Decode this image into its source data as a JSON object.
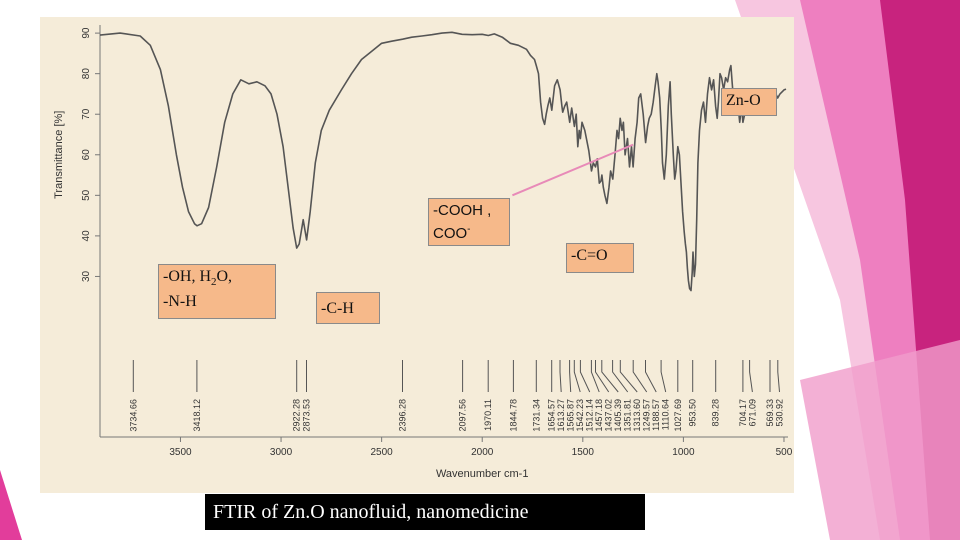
{
  "colors": {
    "background": "#ffffff",
    "panel": "#f5ecd9",
    "curve": "#555555",
    "label_fill": "#f6b98a",
    "pointer": "#e88ab8",
    "caption_bg": "#000000",
    "deco_pink": "#e23d9b",
    "deco_light": "#f3a6cf"
  },
  "chart_data": {
    "type": "line",
    "title": "",
    "xlabel": "Wavenumber cm-1",
    "ylabel": "Transmittance [%]",
    "xlim": [
      3900,
      480
    ],
    "ylim": [
      20,
      92
    ],
    "x_ticks": [
      3500,
      3000,
      2500,
      2000,
      1500,
      1000,
      500
    ],
    "y_ticks": [
      30,
      40,
      50,
      60,
      70,
      80,
      90
    ],
    "grid": false,
    "legend": "none",
    "series": [
      {
        "points": [
          [
            3900,
            89.5
          ],
          [
            3800,
            90
          ],
          [
            3700,
            89.3
          ],
          [
            3650,
            87
          ],
          [
            3600,
            81
          ],
          [
            3560,
            72
          ],
          [
            3520,
            60
          ],
          [
            3490,
            52
          ],
          [
            3460,
            46
          ],
          [
            3430,
            43
          ],
          [
            3418,
            42.5
          ],
          [
            3395,
            43
          ],
          [
            3360,
            47
          ],
          [
            3320,
            57
          ],
          [
            3280,
            68
          ],
          [
            3240,
            75
          ],
          [
            3200,
            78.5
          ],
          [
            3160,
            77.5
          ],
          [
            3120,
            78
          ],
          [
            3080,
            77
          ],
          [
            3050,
            75
          ],
          [
            3020,
            70
          ],
          [
            2990,
            62
          ],
          [
            2960,
            50
          ],
          [
            2940,
            42
          ],
          [
            2922,
            37
          ],
          [
            2910,
            38
          ],
          [
            2890,
            44
          ],
          [
            2873,
            39
          ],
          [
            2855,
            46
          ],
          [
            2830,
            58
          ],
          [
            2800,
            66
          ],
          [
            2760,
            71
          ],
          [
            2700,
            76
          ],
          [
            2650,
            80
          ],
          [
            2600,
            83.5
          ],
          [
            2550,
            85.5
          ],
          [
            2500,
            87.5
          ],
          [
            2450,
            88
          ],
          [
            2396,
            88.5
          ],
          [
            2350,
            89
          ],
          [
            2300,
            89.3
          ],
          [
            2250,
            89.6
          ],
          [
            2200,
            90
          ],
          [
            2150,
            90.2
          ],
          [
            2100,
            89.7
          ],
          [
            2050,
            89.6
          ],
          [
            2000,
            89.7
          ],
          [
            1970,
            89.4
          ],
          [
            1940,
            89.8
          ],
          [
            1900,
            89
          ],
          [
            1860,
            87.5
          ],
          [
            1820,
            87
          ],
          [
            1780,
            86
          ],
          [
            1760,
            84.5
          ],
          [
            1740,
            83.5
          ],
          [
            1731,
            82
          ],
          [
            1720,
            80
          ],
          [
            1710,
            73
          ],
          [
            1700,
            69
          ],
          [
            1690,
            67.5
          ],
          [
            1682,
            70
          ],
          [
            1674,
            72
          ],
          [
            1664,
            74
          ],
          [
            1654,
            71
          ],
          [
            1640,
            77
          ],
          [
            1627,
            78.5
          ],
          [
            1613,
            76
          ],
          [
            1604,
            72
          ],
          [
            1600,
            70.5
          ],
          [
            1590,
            72
          ],
          [
            1580,
            73
          ],
          [
            1565,
            68
          ],
          [
            1555,
            71.5
          ],
          [
            1542,
            67
          ],
          [
            1533,
            70
          ],
          [
            1525,
            62
          ],
          [
            1518,
            66
          ],
          [
            1512,
            64
          ],
          [
            1504,
            68
          ],
          [
            1490,
            66
          ],
          [
            1470,
            61
          ],
          [
            1457,
            56
          ],
          [
            1448,
            58
          ],
          [
            1437,
            57
          ],
          [
            1428,
            59
          ],
          [
            1418,
            53
          ],
          [
            1410,
            53.5
          ],
          [
            1405,
            55
          ],
          [
            1398,
            52
          ],
          [
            1390,
            50
          ],
          [
            1380,
            48
          ],
          [
            1370,
            52
          ],
          [
            1362,
            56
          ],
          [
            1351,
            54
          ],
          [
            1340,
            60
          ],
          [
            1330,
            66
          ],
          [
            1322,
            64
          ],
          [
            1314,
            69
          ],
          [
            1305,
            66
          ],
          [
            1298,
            68
          ],
          [
            1290,
            60
          ],
          [
            1278,
            64
          ],
          [
            1268,
            57
          ],
          [
            1258,
            62
          ],
          [
            1250,
            57
          ],
          [
            1240,
            64
          ],
          [
            1230,
            68
          ],
          [
            1222,
            74
          ],
          [
            1212,
            75
          ],
          [
            1200,
            70
          ],
          [
            1188,
            63
          ],
          [
            1178,
            67
          ],
          [
            1170,
            69
          ],
          [
            1160,
            70
          ],
          [
            1150,
            73
          ],
          [
            1140,
            77
          ],
          [
            1132,
            80
          ],
          [
            1126,
            78
          ],
          [
            1118,
            74
          ],
          [
            1110,
            66
          ],
          [
            1104,
            58
          ],
          [
            1095,
            54
          ],
          [
            1085,
            60
          ],
          [
            1075,
            72
          ],
          [
            1066,
            78
          ],
          [
            1060,
            70
          ],
          [
            1050,
            60
          ],
          [
            1043,
            54
          ],
          [
            1037,
            56
          ],
          [
            1028,
            62
          ],
          [
            1020,
            60
          ],
          [
            1012,
            53
          ],
          [
            1004,
            46
          ],
          [
            996,
            41
          ],
          [
            990,
            38
          ],
          [
            985,
            36
          ],
          [
            980,
            32
          ],
          [
            975,
            29
          ],
          [
            969,
            27
          ],
          [
            962,
            26.5
          ],
          [
            956,
            31
          ],
          [
            952,
            36
          ],
          [
            946,
            30
          ],
          [
            940,
            33
          ],
          [
            934,
            44
          ],
          [
            928,
            58
          ],
          [
            920,
            66
          ],
          [
            910,
            71
          ],
          [
            900,
            73
          ],
          [
            890,
            68
          ],
          [
            880,
            75
          ],
          [
            870,
            79
          ],
          [
            860,
            76
          ],
          [
            850,
            78.5
          ],
          [
            840,
            72
          ],
          [
            832,
            69
          ],
          [
            826,
            73
          ],
          [
            818,
            80
          ],
          [
            810,
            79
          ],
          [
            800,
            76
          ],
          [
            790,
            79
          ],
          [
            780,
            78
          ],
          [
            770,
            81
          ],
          [
            764,
            82
          ],
          [
            758,
            78
          ],
          [
            750,
            73
          ],
          [
            740,
            70
          ],
          [
            728,
            72
          ],
          [
            720,
            68
          ],
          [
            710,
            72
          ],
          [
            704,
            68
          ],
          [
            695,
            70
          ],
          [
            688,
            74
          ],
          [
            680,
            75
          ],
          [
            671,
            72
          ],
          [
            660,
            74
          ],
          [
            650,
            76
          ],
          [
            640,
            74
          ],
          [
            630,
            72.5
          ],
          [
            620,
            73
          ],
          [
            610,
            72.3
          ],
          [
            600,
            73.5
          ],
          [
            580,
            74
          ],
          [
            569,
            73
          ],
          [
            560,
            75
          ],
          [
            550,
            74.5
          ],
          [
            540,
            75
          ],
          [
            531,
            74
          ],
          [
            520,
            75
          ],
          [
            510,
            75.5
          ],
          [
            500,
            76
          ],
          [
            490,
            76.2
          ]
        ]
      }
    ],
    "peak_labels": [
      {
        "x": 3734.66,
        "label": "3734.66"
      },
      {
        "x": 3418.12,
        "label": "3418.12"
      },
      {
        "x": 2922.28,
        "label": "2922.28"
      },
      {
        "x": 2873.53,
        "label": "2873.53"
      },
      {
        "x": 2396.28,
        "label": "2396.28"
      },
      {
        "x": 2097.56,
        "label": "2097.56"
      },
      {
        "x": 1970.11,
        "label": "1970.11"
      },
      {
        "x": 1844.78,
        "label": "1844.78"
      },
      {
        "x": 1731.34,
        "label": "1731.34"
      },
      {
        "x": 1654.57,
        "label": "1654.57"
      },
      {
        "x": 1613.27,
        "label": "1613.27"
      },
      {
        "x": 1565.87,
        "label": "1565.87"
      },
      {
        "x": 1542.23,
        "label": "1542.23"
      },
      {
        "x": 1512.14,
        "label": "1512.14"
      },
      {
        "x": 1457.18,
        "label": "1457.18"
      },
      {
        "x": 1437.02,
        "label": "1437.02"
      },
      {
        "x": 1405.39,
        "label": "1405.39"
      },
      {
        "x": 1351.81,
        "label": "1351.81"
      },
      {
        "x": 1313.6,
        "label": "1313.60"
      },
      {
        "x": 1249.57,
        "label": "1249.57"
      },
      {
        "x": 1188.57,
        "label": "1188.57"
      },
      {
        "x": 1110.64,
        "label": "1110.64"
      },
      {
        "x": 1027.69,
        "label": "1027.69"
      },
      {
        "x": 953.5,
        "label": "953.50"
      },
      {
        "x": 839.28,
        "label": "839.28"
      },
      {
        "x": 704.17,
        "label": "704.17"
      },
      {
        "x": 671.09,
        "label": "671.09"
      },
      {
        "x": 569.33,
        "label": "569.33"
      },
      {
        "x": 530.92,
        "label": "530.92"
      }
    ],
    "annotations": {
      "zno": "Zn-O",
      "cooh_line1": "-COOH ,",
      "cooh_line2": "COO",
      "cooh_sup": "-",
      "co": "-C=O",
      "oh_line1_a": "-OH, H",
      "oh_sub": "2",
      "oh_line1_b": "O,",
      "oh_line2": "-N-H",
      "ch": "-C-H"
    }
  },
  "caption": "FTIR of Zn.O nanofluid, nanomedicine"
}
